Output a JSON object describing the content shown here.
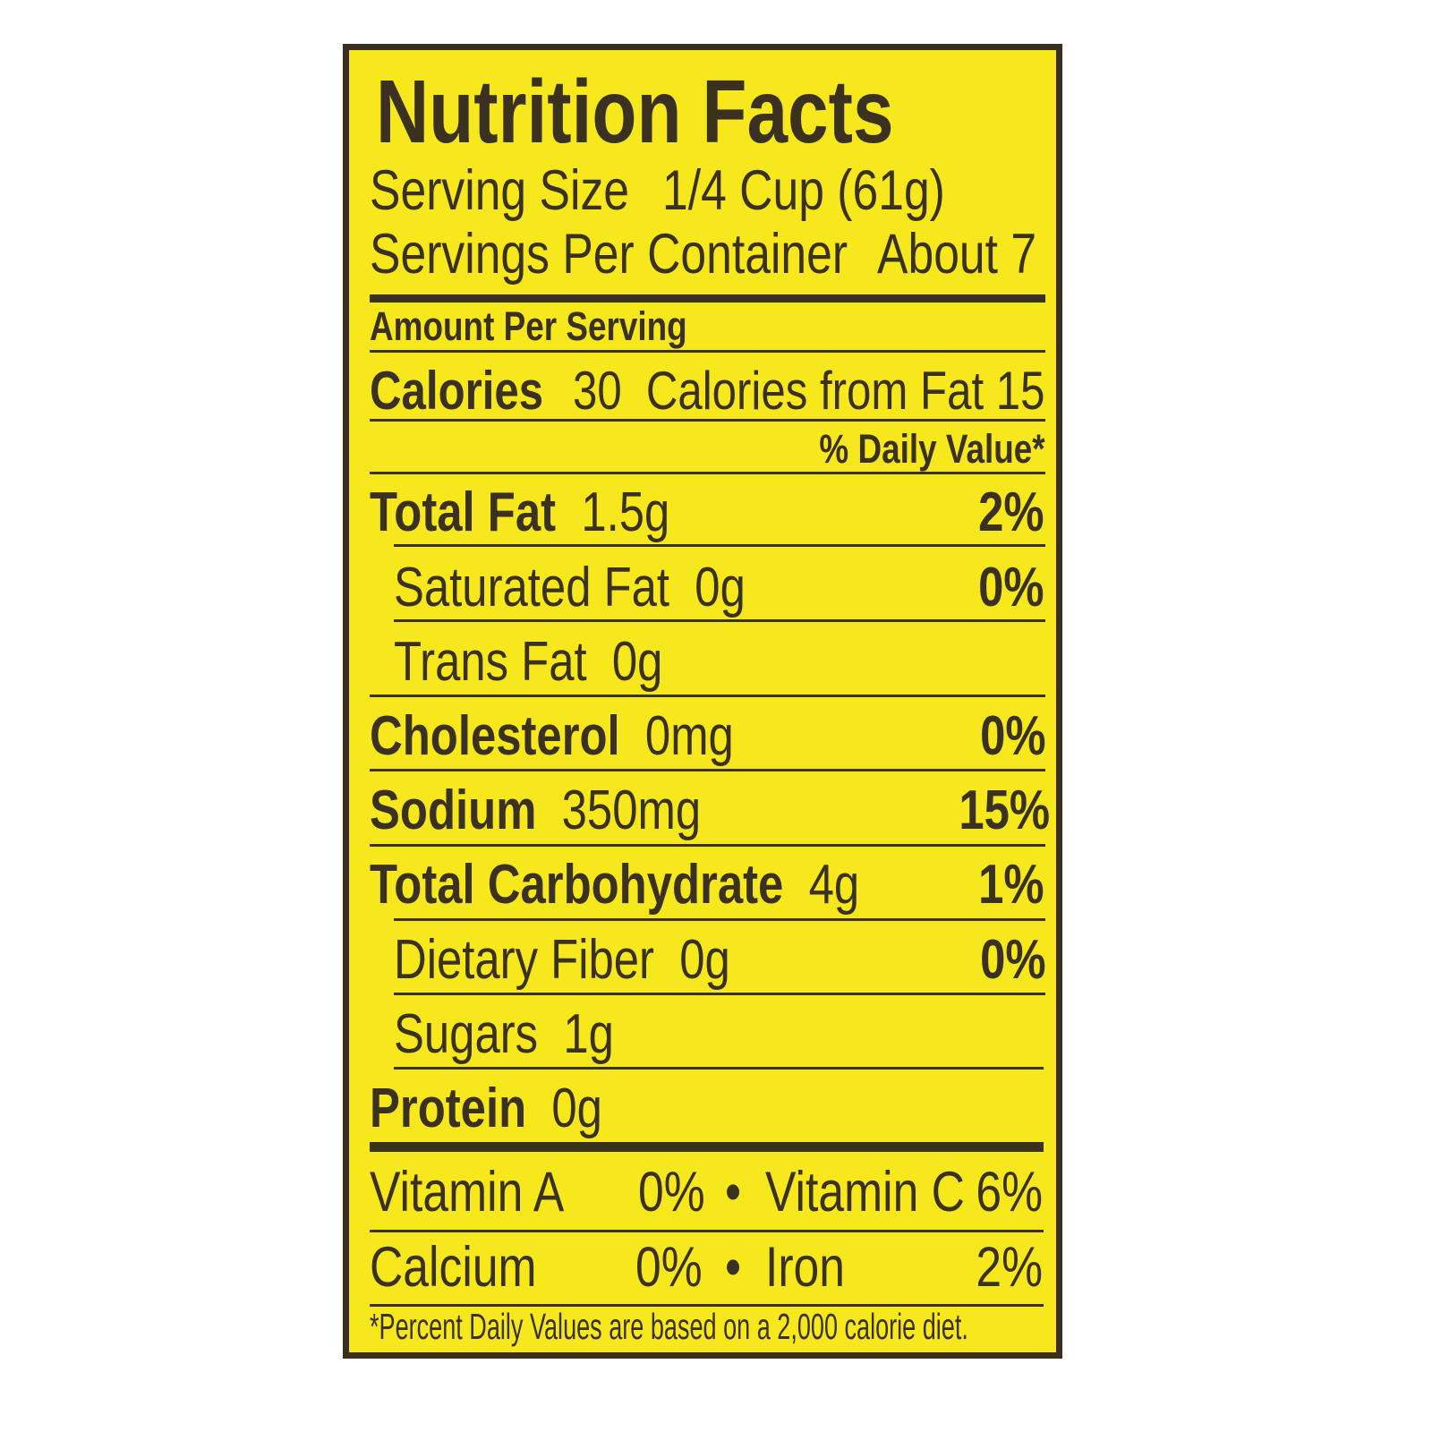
{
  "title": "Nutrition Facts",
  "serving_size": {
    "label": "Serving Size",
    "value": "1/4 Cup (61g)"
  },
  "servings_per_container": {
    "label": "Servings Per Container",
    "value": "About 7"
  },
  "amount_per_serving": "Amount Per Serving",
  "calories": {
    "label": "Calories",
    "value": "30",
    "from_fat_label": "Calories from Fat",
    "from_fat_value": "15"
  },
  "daily_value_header": "% Daily Value*",
  "nutrients": [
    {
      "label": "Total Fat",
      "amount": "1.5g",
      "dv": "2%"
    },
    {
      "label": "Saturated Fat",
      "amount": "0g",
      "dv": "0%"
    },
    {
      "label": "Trans Fat",
      "amount": "0g",
      "dv": ""
    },
    {
      "label": "Cholesterol",
      "amount": "0mg",
      "dv": "0%"
    },
    {
      "label": "Sodium",
      "amount": "350mg",
      "dv": "15%"
    },
    {
      "label": "Total Carbohydrate",
      "amount": "4g",
      "dv": "1%"
    },
    {
      "label": "Dietary Fiber",
      "amount": "0g",
      "dv": "0%"
    },
    {
      "label": "Sugars",
      "amount": "1g",
      "dv": ""
    },
    {
      "label": "Protein",
      "amount": "0g",
      "dv": ""
    }
  ],
  "vitamins": [
    {
      "left_label": "Vitamin A",
      "left_value": "0%",
      "separator": "•",
      "right_label": "Vitamin C",
      "right_value": "6%"
    },
    {
      "left_label": "Calcium",
      "left_value": "0%",
      "separator": "•",
      "right_label": "Iron",
      "right_value": "2%"
    }
  ],
  "footnote": "*Percent Daily Values are based on a 2,000 calorie diet.",
  "colors": {
    "background": "#f6e81c",
    "text": "#3a3120"
  }
}
